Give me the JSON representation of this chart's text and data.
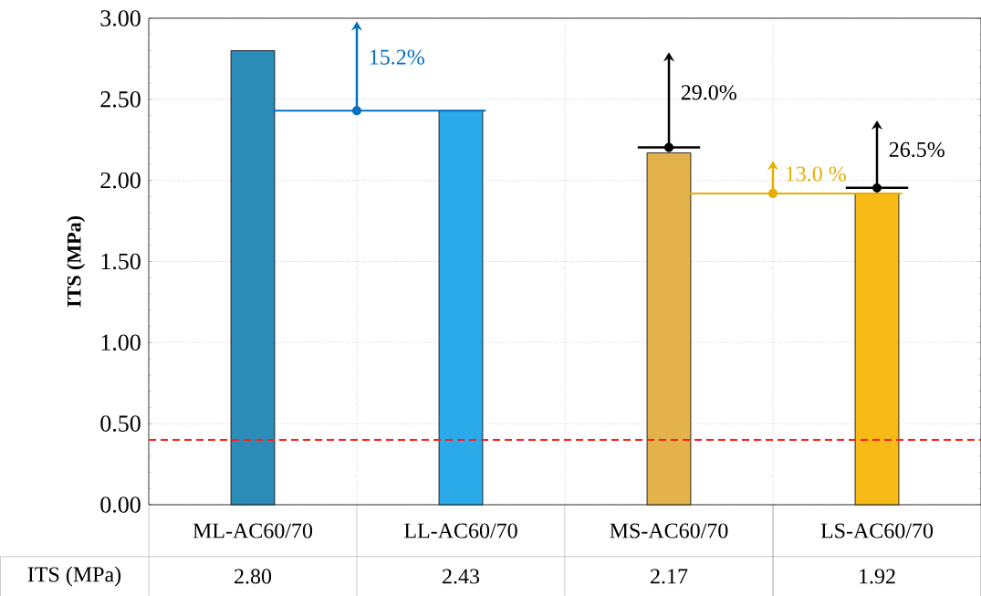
{
  "chart_data": {
    "type": "bar",
    "ylabel": "ITS (MPa)",
    "categories": [
      "ML-AC60/70",
      "LL-AC60/70",
      "MS-AC60/70",
      "LS-AC60/70"
    ],
    "values": [
      2.8,
      2.43,
      2.17,
      1.92
    ],
    "colors": [
      "#2b8cb8",
      "#2aaae8",
      "#e3b24a",
      "#f7ba16"
    ],
    "value_labels": [
      "2.80",
      "2.43",
      "2.17",
      "1.92"
    ],
    "ylim": [
      0,
      3
    ],
    "yticks": [
      {
        "value": 0,
        "label": "0.00"
      },
      {
        "value": 0.5,
        "label": "0.50"
      },
      {
        "value": 1,
        "label": "1.00"
      },
      {
        "value": 1.5,
        "label": "1.50"
      },
      {
        "value": 2,
        "label": "2.00"
      },
      {
        "value": 2.5,
        "label": "2.50"
      },
      {
        "value": 3,
        "label": "3.00"
      }
    ],
    "grid": true,
    "ref_lines": [
      {
        "axis": "y",
        "value": 0.4,
        "color": "#ff2020",
        "line_style": "dashed"
      }
    ],
    "annotations": [
      {
        "text": "15.2%",
        "x": "LL-AC60/70",
        "y": 2.43
      },
      {
        "text": "29.0%",
        "x": "MS-AC60/70",
        "y": 2.17
      },
      {
        "text": "13.0 %",
        "x": "LS-AC60/70",
        "y": 1.92
      },
      {
        "text": "26.5%",
        "x": "LS-AC60/70",
        "y": 1.92
      }
    ]
  }
}
